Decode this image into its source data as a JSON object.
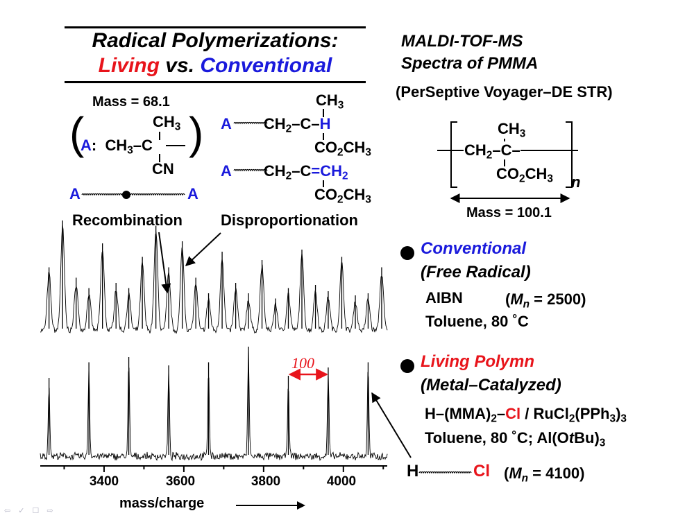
{
  "title": {
    "line1": "Radical Polymerizations:",
    "living": "Living",
    "vs": " vs. ",
    "conventional": "Conventional"
  },
  "maldi": {
    "line1": "MALDI-TOF-MS",
    "line2": "Spectra of PMMA",
    "instrument": "(PerSeptive Voyager–DE STR)"
  },
  "aibn_fragment": {
    "mass": "Mass = 68.1",
    "label": "A",
    "colon": ":",
    "ch3": "CH",
    "ch3_sub": "3",
    "ch3_left": "CH",
    "ch3_left_sub": "3",
    "c": "C",
    "cn": "CN"
  },
  "recombination": {
    "a_left": "A",
    "a_right": "A",
    "label": "Recombination"
  },
  "disproportionation": {
    "ch3_top": "CH",
    "ch3_top_sub": "3",
    "row1_a": "A",
    "row1_ch2": "CH",
    "row1_ch2_sub": "2",
    "row1_c": "–C–",
    "row1_h": "H",
    "row1_ester": "CO",
    "row1_ester_sub": "2",
    "row1_ester_tail": "CH",
    "row1_ester_tail_sub": "3",
    "row2_a": "A",
    "row2_ch2": "CH",
    "row2_ch2_sub": "2",
    "row2_c": "–C",
    "row2_eq": "=CH",
    "row2_eq_sub": "2",
    "row2_ester": "CO",
    "row2_ester_sub": "2",
    "row2_ester_tail": "CH",
    "row2_ester_tail_sub": "3",
    "label": "Disproportionation"
  },
  "pmma_unit": {
    "ch3": "CH",
    "ch3_sub": "3",
    "ch2": "CH",
    "ch2_sub": "2",
    "c": "–C–",
    "ester": "CO",
    "ester_sub": "2",
    "ester_tail": "CH",
    "ester_tail_sub": "3",
    "n": "n",
    "mass": "Mass = 100.1"
  },
  "conventional": {
    "title": "Conventional",
    "subtitle": "(Free Radical)",
    "initiator": "AIBN",
    "mn_prefix": "(",
    "mn_m": "M",
    "mn_n": "n",
    "mn_value": " = 2500)",
    "conditions": "Toluene, 80 ˚C"
  },
  "living": {
    "title": "Living Polymn",
    "subtitle": "(Metal–Catalyzed)",
    "init_a": "H–(MMA)",
    "init_a_sub": "2",
    "init_dash": "–",
    "init_cl": "Cl",
    "init_b": " / RuCl",
    "init_b_sub": "2",
    "init_c": "(PPh",
    "init_c_sub": "3",
    "init_d": ")",
    "init_d_sub": "3",
    "cond_a": "Toluene, 80 ˚C;  Al(O",
    "cond_t": "t",
    "cond_b": "Bu)",
    "cond_b_sub": "3",
    "end_h": "H",
    "end_cl": "Cl",
    "mn_prefix": "(",
    "mn_m": "M",
    "mn_n": "n",
    "mn_value": " = 4100)"
  },
  "spectrum": {
    "spacing_label": "100",
    "xlabel": "mass/charge",
    "ticks": [
      "3400",
      "3600",
      "3800",
      "4000"
    ]
  },
  "chart_data": [
    {
      "type": "line",
      "title": "",
      "xlabel": "mass/charge",
      "ylabel": "",
      "xlim": [
        3240,
        4110
      ],
      "series": [
        {
          "name": "Conventional",
          "peaks_mz": [
            3262,
            3296,
            3330,
            3362,
            3396,
            3430,
            3462,
            3496,
            3530,
            3562,
            3596,
            3630,
            3662,
            3696,
            3730,
            3762,
            3796,
            3830,
            3862,
            3896,
            3930,
            3962,
            3996,
            4030,
            4062,
            4096
          ],
          "relative_intensity": [
            0.55,
            1.0,
            0.45,
            0.35,
            0.78,
            0.4,
            0.35,
            0.65,
            0.95,
            0.55,
            0.8,
            0.45,
            0.3,
            0.7,
            0.4,
            0.3,
            0.62,
            0.25,
            0.35,
            0.72,
            0.38,
            0.32,
            0.65,
            0.28,
            0.3,
            0.55
          ]
        },
        {
          "name": "Living",
          "peaks_mz": [
            3262,
            3362,
            3462,
            3562,
            3662,
            3762,
            3862,
            3962,
            4062
          ],
          "relative_intensity": [
            0.7,
            0.85,
            0.9,
            0.82,
            0.85,
            1.0,
            0.72,
            0.8,
            0.85
          ]
        }
      ]
    }
  ]
}
